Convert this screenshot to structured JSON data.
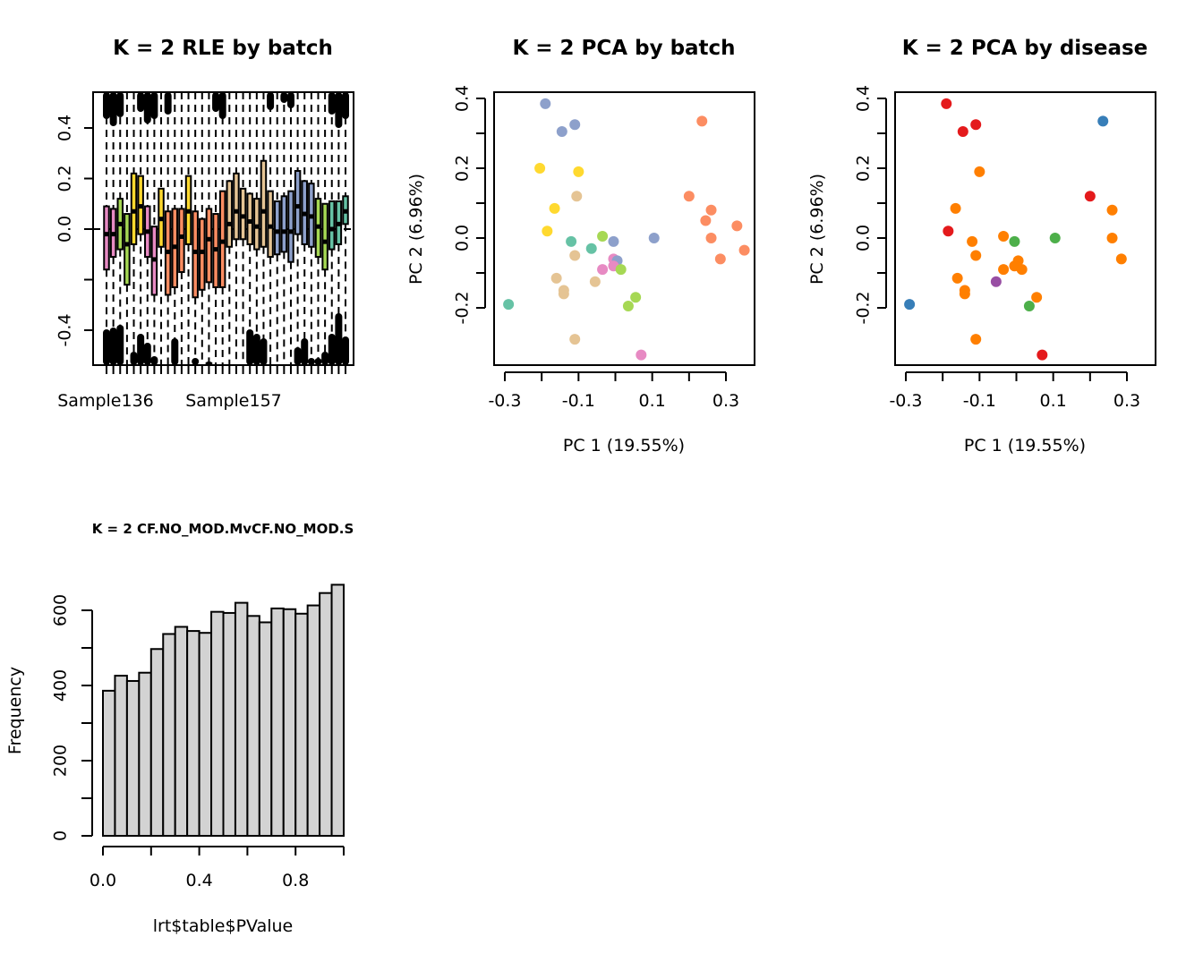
{
  "chart_data": [
    {
      "type": "boxplot",
      "title": "K = 2 RLE by batch",
      "xlabel": "",
      "ylabel": "",
      "ylim": [
        -0.53,
        0.55
      ],
      "yticks": [
        0.4,
        0.2,
        0.0,
        -0.4
      ],
      "ytick_labels": [
        "0.4",
        "0.2",
        "0.0",
        "-0.4"
      ],
      "xtick_labels": [
        "Sample136",
        "Sample157"
      ],
      "reference_line": 0.0,
      "boxes": [
        {
          "color": "#E78AC3",
          "q1": -0.16,
          "median": -0.02,
          "q3": 0.09,
          "lo": -0.53,
          "hi": 0.55
        },
        {
          "color": "#E78AC3",
          "q1": -0.11,
          "median": -0.02,
          "q3": 0.08,
          "lo": -0.53,
          "hi": 0.55
        },
        {
          "color": "#A6D854",
          "q1": -0.08,
          "median": 0.02,
          "q3": 0.12,
          "lo": -0.53,
          "hi": 0.55
        },
        {
          "color": "#A6D854",
          "q1": -0.22,
          "median": -0.06,
          "q3": 0.06,
          "lo": -0.53,
          "hi": 0.55
        },
        {
          "color": "#FFD92F",
          "q1": -0.06,
          "median": 0.07,
          "q3": 0.22,
          "lo": -0.53,
          "hi": 0.55
        },
        {
          "color": "#FFD92F",
          "q1": -0.02,
          "median": 0.09,
          "q3": 0.21,
          "lo": -0.53,
          "hi": 0.55
        },
        {
          "color": "#E78AC3",
          "q1": -0.11,
          "median": -0.01,
          "q3": 0.09,
          "lo": -0.53,
          "hi": 0.55
        },
        {
          "color": "#E78AC3",
          "q1": -0.26,
          "median": -0.12,
          "q3": 0.01,
          "lo": -0.53,
          "hi": 0.55
        },
        {
          "color": "#FFD92F",
          "q1": -0.07,
          "median": 0.04,
          "q3": 0.16,
          "lo": -0.53,
          "hi": 0.55
        },
        {
          "color": "#FC8D62",
          "q1": -0.26,
          "median": -0.09,
          "q3": 0.07,
          "lo": -0.53,
          "hi": 0.55
        },
        {
          "color": "#FC8D62",
          "q1": -0.23,
          "median": -0.07,
          "q3": 0.08,
          "lo": -0.53,
          "hi": 0.55
        },
        {
          "color": "#FC8D62",
          "q1": -0.17,
          "median": -0.03,
          "q3": 0.08,
          "lo": -0.53,
          "hi": 0.55
        },
        {
          "color": "#FFD92F",
          "q1": -0.06,
          "median": 0.07,
          "q3": 0.21,
          "lo": -0.53,
          "hi": 0.55
        },
        {
          "color": "#FC8D62",
          "q1": -0.27,
          "median": -0.09,
          "q3": 0.07,
          "lo": -0.53,
          "hi": 0.55
        },
        {
          "color": "#FC8D62",
          "q1": -0.24,
          "median": -0.09,
          "q3": 0.04,
          "lo": -0.53,
          "hi": 0.55
        },
        {
          "color": "#FC8D62",
          "q1": -0.21,
          "median": -0.04,
          "q3": 0.08,
          "lo": -0.53,
          "hi": 0.55
        },
        {
          "color": "#FC8D62",
          "q1": -0.23,
          "median": -0.08,
          "q3": 0.06,
          "lo": -0.53,
          "hi": 0.55
        },
        {
          "color": "#FC8D62",
          "q1": -0.23,
          "median": -0.05,
          "q3": 0.15,
          "lo": -0.53,
          "hi": 0.55
        },
        {
          "color": "#E5C494",
          "q1": -0.07,
          "median": 0.02,
          "q3": 0.19,
          "lo": -0.53,
          "hi": 0.55
        },
        {
          "color": "#E5C494",
          "q1": -0.04,
          "median": 0.07,
          "q3": 0.22,
          "lo": -0.53,
          "hi": 0.55
        },
        {
          "color": "#E5C494",
          "q1": -0.04,
          "median": 0.05,
          "q3": 0.16,
          "lo": -0.53,
          "hi": 0.55
        },
        {
          "color": "#E5C494",
          "q1": -0.06,
          "median": 0.03,
          "q3": 0.14,
          "lo": -0.53,
          "hi": 0.55
        },
        {
          "color": "#E5C494",
          "q1": -0.08,
          "median": 0.01,
          "q3": 0.12,
          "lo": -0.53,
          "hi": 0.55
        },
        {
          "color": "#E5C494",
          "q1": -0.07,
          "median": 0.07,
          "q3": 0.27,
          "lo": -0.53,
          "hi": 0.55
        },
        {
          "color": "#E5C494",
          "q1": -0.11,
          "median": 0.01,
          "q3": 0.15,
          "lo": -0.53,
          "hi": 0.55
        },
        {
          "color": "#8DA0CB",
          "q1": -0.1,
          "median": -0.01,
          "q3": 0.11,
          "lo": -0.53,
          "hi": 0.55
        },
        {
          "color": "#8DA0CB",
          "q1": -0.09,
          "median": -0.01,
          "q3": 0.13,
          "lo": -0.53,
          "hi": 0.55
        },
        {
          "color": "#8DA0CB",
          "q1": -0.13,
          "median": -0.01,
          "q3": 0.15,
          "lo": -0.53,
          "hi": 0.55
        },
        {
          "color": "#8DA0CB",
          "q1": -0.02,
          "median": 0.09,
          "q3": 0.23,
          "lo": -0.53,
          "hi": 0.55
        },
        {
          "color": "#8DA0CB",
          "q1": -0.06,
          "median": 0.06,
          "q3": 0.19,
          "lo": -0.53,
          "hi": 0.55
        },
        {
          "color": "#8DA0CB",
          "q1": -0.07,
          "median": 0.05,
          "q3": 0.18,
          "lo": -0.53,
          "hi": 0.55
        },
        {
          "color": "#A6D854",
          "q1": -0.11,
          "median": 0.01,
          "q3": 0.12,
          "lo": -0.53,
          "hi": 0.55
        },
        {
          "color": "#A6D854",
          "q1": -0.16,
          "median": -0.05,
          "q3": 0.1,
          "lo": -0.53,
          "hi": 0.55
        },
        {
          "color": "#66C2A5",
          "q1": -0.08,
          "median": 0.0,
          "q3": 0.11,
          "lo": -0.53,
          "hi": 0.55
        },
        {
          "color": "#66C2A5",
          "q1": -0.06,
          "median": 0.02,
          "q3": 0.11,
          "lo": -0.53,
          "hi": 0.55
        },
        {
          "color": "#66C2A5",
          "q1": 0.02,
          "median": 0.07,
          "q3": 0.13,
          "lo": -0.53,
          "hi": 0.55
        }
      ]
    },
    {
      "type": "scatter",
      "title": "K = 2 PCA by batch",
      "xlabel": "PC 1 (19.55%)",
      "ylabel": "PC 2 (6.96%)",
      "xticks": [
        -0.3,
        -0.1,
        0.1,
        0.3
      ],
      "xtick_labels": [
        "-0.3",
        "-0.1",
        "0.1",
        "0.3"
      ],
      "yticks": [
        0.4,
        0.2,
        0.0,
        -0.2
      ],
      "ytick_labels": [
        "0.4",
        "0.2",
        "0.0",
        "-0.2"
      ],
      "xlim": [
        -0.33,
        0.37
      ],
      "ylim": [
        -0.36,
        0.41
      ],
      "points": [
        {
          "x": -0.19,
          "y": 0.385,
          "color": "#8DA0CB"
        },
        {
          "x": -0.145,
          "y": 0.305,
          "color": "#8DA0CB"
        },
        {
          "x": -0.11,
          "y": 0.325,
          "color": "#8DA0CB"
        },
        {
          "x": 0.235,
          "y": 0.335,
          "color": "#FC8D62"
        },
        {
          "x": -0.205,
          "y": 0.2,
          "color": "#FFD92F"
        },
        {
          "x": -0.1,
          "y": 0.19,
          "color": "#FFD92F"
        },
        {
          "x": -0.105,
          "y": 0.12,
          "color": "#E5C494"
        },
        {
          "x": 0.2,
          "y": 0.12,
          "color": "#FC8D62"
        },
        {
          "x": -0.165,
          "y": 0.085,
          "color": "#FFD92F"
        },
        {
          "x": 0.26,
          "y": 0.08,
          "color": "#FC8D62"
        },
        {
          "x": 0.245,
          "y": 0.05,
          "color": "#FC8D62"
        },
        {
          "x": 0.33,
          "y": 0.035,
          "color": "#FC8D62"
        },
        {
          "x": -0.185,
          "y": 0.02,
          "color": "#FFD92F"
        },
        {
          "x": -0.12,
          "y": -0.01,
          "color": "#66C2A5"
        },
        {
          "x": -0.035,
          "y": 0.005,
          "color": "#A6D854"
        },
        {
          "x": -0.005,
          "y": -0.01,
          "color": "#8DA0CB"
        },
        {
          "x": 0.105,
          "y": 0.0,
          "color": "#8DA0CB"
        },
        {
          "x": 0.26,
          "y": 0.0,
          "color": "#FC8D62"
        },
        {
          "x": -0.065,
          "y": -0.03,
          "color": "#66C2A5"
        },
        {
          "x": -0.11,
          "y": -0.05,
          "color": "#E5C494"
        },
        {
          "x": 0.35,
          "y": -0.035,
          "color": "#FC8D62"
        },
        {
          "x": 0.285,
          "y": -0.06,
          "color": "#FC8D62"
        },
        {
          "x": -0.005,
          "y": -0.06,
          "color": "#E78AC3"
        },
        {
          "x": 0.005,
          "y": -0.065,
          "color": "#8DA0CB"
        },
        {
          "x": -0.005,
          "y": -0.08,
          "color": "#E78AC3"
        },
        {
          "x": -0.035,
          "y": -0.09,
          "color": "#E78AC3"
        },
        {
          "x": 0.015,
          "y": -0.09,
          "color": "#A6D854"
        },
        {
          "x": -0.16,
          "y": -0.115,
          "color": "#E5C494"
        },
        {
          "x": -0.055,
          "y": -0.125,
          "color": "#E5C494"
        },
        {
          "x": -0.14,
          "y": -0.15,
          "color": "#E5C494"
        },
        {
          "x": -0.14,
          "y": -0.16,
          "color": "#E5C494"
        },
        {
          "x": 0.055,
          "y": -0.17,
          "color": "#A6D854"
        },
        {
          "x": 0.035,
          "y": -0.195,
          "color": "#A6D854"
        },
        {
          "x": -0.29,
          "y": -0.19,
          "color": "#66C2A5"
        },
        {
          "x": -0.11,
          "y": -0.29,
          "color": "#E5C494"
        },
        {
          "x": 0.07,
          "y": -0.335,
          "color": "#E78AC3"
        }
      ]
    },
    {
      "type": "scatter",
      "title": "K = 2 PCA by disease",
      "xlabel": "PC 1 (19.55%)",
      "ylabel": "PC 2 (6.96%)",
      "xticks": [
        -0.3,
        -0.1,
        0.1,
        0.3
      ],
      "xtick_labels": [
        "-0.3",
        "-0.1",
        "0.1",
        "0.3"
      ],
      "yticks": [
        0.4,
        0.2,
        0.0,
        -0.2
      ],
      "ytick_labels": [
        "0.4",
        "0.2",
        "0.0",
        "-0.2"
      ],
      "xlim": [
        -0.33,
        0.37
      ],
      "ylim": [
        -0.36,
        0.41
      ],
      "points": [
        {
          "x": -0.19,
          "y": 0.385,
          "color": "#E41A1C"
        },
        {
          "x": -0.145,
          "y": 0.305,
          "color": "#E41A1C"
        },
        {
          "x": -0.11,
          "y": 0.325,
          "color": "#E41A1C"
        },
        {
          "x": 0.235,
          "y": 0.335,
          "color": "#377EB8"
        },
        {
          "x": -0.1,
          "y": 0.19,
          "color": "#FF7F00"
        },
        {
          "x": 0.2,
          "y": 0.12,
          "color": "#E41A1C"
        },
        {
          "x": -0.165,
          "y": 0.085,
          "color": "#FF7F00"
        },
        {
          "x": 0.26,
          "y": 0.08,
          "color": "#FF7F00"
        },
        {
          "x": -0.185,
          "y": 0.02,
          "color": "#E41A1C"
        },
        {
          "x": -0.12,
          "y": -0.01,
          "color": "#FF7F00"
        },
        {
          "x": -0.035,
          "y": 0.005,
          "color": "#FF7F00"
        },
        {
          "x": -0.005,
          "y": -0.01,
          "color": "#4DAF4A"
        },
        {
          "x": 0.105,
          "y": 0.0,
          "color": "#4DAF4A"
        },
        {
          "x": 0.26,
          "y": 0.0,
          "color": "#FF7F00"
        },
        {
          "x": -0.11,
          "y": -0.05,
          "color": "#FF7F00"
        },
        {
          "x": 0.285,
          "y": -0.06,
          "color": "#FF7F00"
        },
        {
          "x": 0.005,
          "y": -0.065,
          "color": "#FF7F00"
        },
        {
          "x": -0.005,
          "y": -0.08,
          "color": "#FF7F00"
        },
        {
          "x": -0.035,
          "y": -0.09,
          "color": "#FF7F00"
        },
        {
          "x": 0.015,
          "y": -0.09,
          "color": "#FF7F00"
        },
        {
          "x": -0.16,
          "y": -0.115,
          "color": "#FF7F00"
        },
        {
          "x": -0.055,
          "y": -0.125,
          "color": "#984EA3"
        },
        {
          "x": -0.14,
          "y": -0.15,
          "color": "#FF7F00"
        },
        {
          "x": -0.14,
          "y": -0.16,
          "color": "#FF7F00"
        },
        {
          "x": 0.055,
          "y": -0.17,
          "color": "#FF7F00"
        },
        {
          "x": 0.035,
          "y": -0.195,
          "color": "#4DAF4A"
        },
        {
          "x": -0.29,
          "y": -0.19,
          "color": "#377EB8"
        },
        {
          "x": -0.11,
          "y": -0.29,
          "color": "#FF7F00"
        },
        {
          "x": 0.07,
          "y": -0.335,
          "color": "#E41A1C"
        }
      ]
    },
    {
      "type": "bar",
      "subtype": "histogram",
      "title": "K = 2 CF.NO_MOD.MvCF.NO_MOD.S",
      "xlabel": "lrt$table$PValue",
      "ylabel": "Frequency",
      "xticks": [
        0.0,
        0.2,
        0.4,
        0.6,
        0.8,
        1.0
      ],
      "xtick_labels": [
        "0.0",
        "",
        "0.4",
        "",
        "0.8",
        ""
      ],
      "yticks": [
        0,
        100,
        200,
        300,
        400,
        500,
        600
      ],
      "ytick_labels": [
        "0",
        "",
        "200",
        "",
        "400",
        "",
        "600"
      ],
      "xlim": [
        0,
        1
      ],
      "ylim": [
        0,
        680
      ],
      "bin_width": 0.05,
      "bin_starts": [
        0.0,
        0.05,
        0.1,
        0.15,
        0.2,
        0.25,
        0.3,
        0.35,
        0.4,
        0.45,
        0.5,
        0.55,
        0.6,
        0.65,
        0.7,
        0.75,
        0.8,
        0.85,
        0.9,
        0.95
      ],
      "values": [
        386,
        426,
        412,
        434,
        497,
        537,
        556,
        545,
        540,
        596,
        593,
        620,
        585,
        568,
        605,
        603,
        591,
        613,
        646,
        668
      ],
      "bar_color": "#D3D3D3"
    }
  ]
}
